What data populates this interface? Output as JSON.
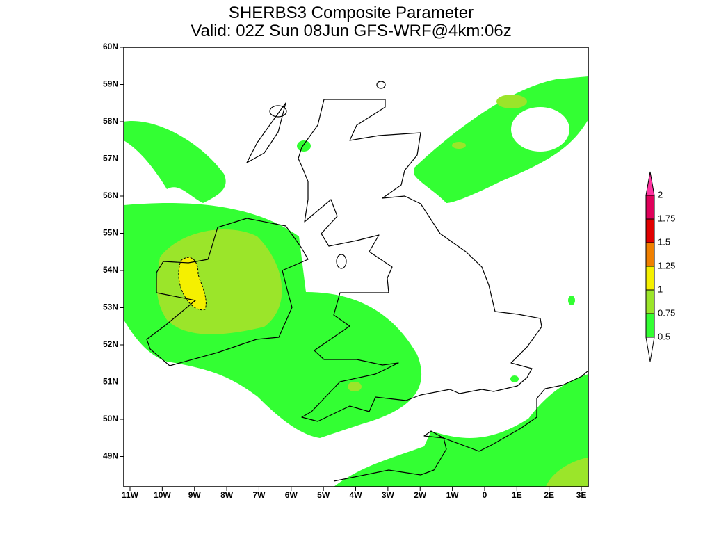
{
  "title": "SHERBS3 Composite Parameter",
  "subtitle": "Valid: 02Z Sun 08Jun GFS-WRF@4km:06z",
  "lat_labels": [
    "60N",
    "59N",
    "58N",
    "57N",
    "56N",
    "55N",
    "54N",
    "53N",
    "52N",
    "51N",
    "50N",
    "49N"
  ],
  "lon_labels": [
    "11W",
    "10W",
    "9W",
    "8W",
    "7W",
    "6W",
    "5W",
    "4W",
    "3W",
    "2W",
    "1W",
    "0",
    "1E",
    "2E",
    "3E"
  ],
  "legend": {
    "levels": [
      0.5,
      0.75,
      1,
      1.25,
      1.5,
      1.75,
      2
    ],
    "colors": [
      "#33ff33",
      "#9be52a",
      "#f5f000",
      "#f08000",
      "#e00000",
      "#e0005a",
      "#ff33a0"
    ]
  }
}
